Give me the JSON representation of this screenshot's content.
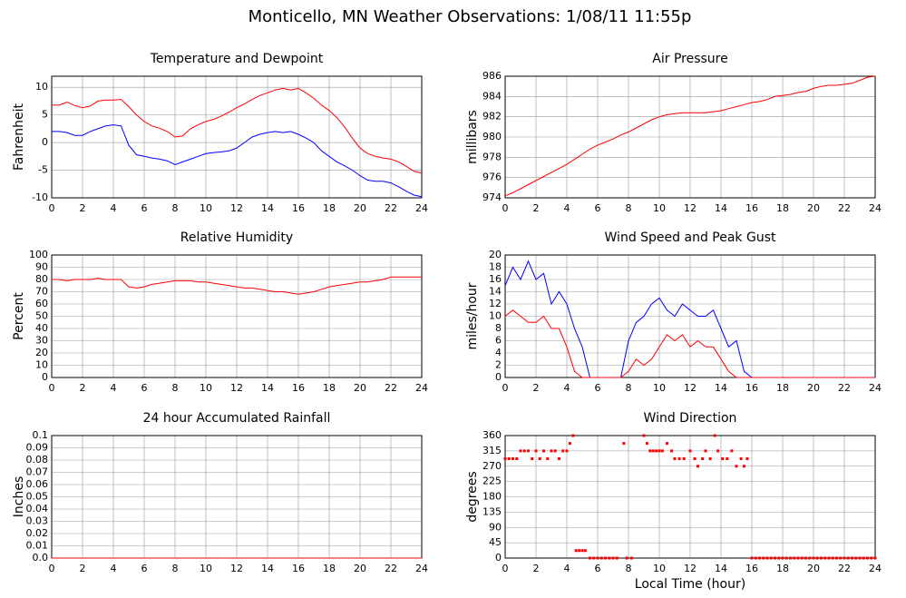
{
  "title": "Monticello, MN Weather Observations: 1/08/11 11:55p",
  "chart_data": [
    {
      "type": "line",
      "title": "Temperature and Dewpoint",
      "ylabel": "Fahrenheit",
      "x": [
        0,
        0.5,
        1,
        1.5,
        2,
        2.5,
        3,
        3.5,
        4,
        4.5,
        5,
        5.5,
        6,
        6.5,
        7,
        7.5,
        8,
        8.5,
        9,
        9.5,
        10,
        10.5,
        11,
        11.5,
        12,
        12.5,
        13,
        13.5,
        14,
        14.5,
        15,
        15.5,
        16,
        16.5,
        17,
        17.5,
        18,
        18.5,
        19,
        19.5,
        20,
        20.5,
        21,
        21.5,
        22,
        22.5,
        23,
        23.5,
        24
      ],
      "series": [
        {
          "color": "#ff0000",
          "values": [
            6.8,
            6.8,
            7.3,
            6.7,
            6.3,
            6.6,
            7.5,
            7.7,
            7.7,
            7.8,
            6.5,
            5.0,
            3.8,
            3.0,
            2.6,
            2.0,
            1.0,
            1.2,
            2.5,
            3.2,
            3.8,
            4.2,
            4.8,
            5.5,
            6.3,
            7.0,
            7.8,
            8.5,
            9.0,
            9.5,
            9.8,
            9.5,
            9.8,
            9.0,
            8.0,
            6.8,
            5.8,
            4.5,
            2.8,
            0.8,
            -1.0,
            -2.0,
            -2.5,
            -2.8,
            -3.0,
            -3.5,
            -4.3,
            -5.2,
            -5.5
          ]
        },
        {
          "color": "#0000ff",
          "values": [
            2,
            2,
            1.8,
            1.3,
            1.3,
            2.0,
            2.5,
            3.0,
            3.2,
            3.0,
            -0.5,
            -2.2,
            -2.5,
            -2.8,
            -3.0,
            -3.3,
            -4.0,
            -3.5,
            -3.0,
            -2.5,
            -2.0,
            -1.8,
            -1.7,
            -1.5,
            -1.0,
            0.0,
            1.0,
            1.5,
            1.8,
            2.0,
            1.8,
            2.0,
            1.5,
            0.8,
            0.0,
            -1.5,
            -2.5,
            -3.5,
            -4.2,
            -5.0,
            -6.0,
            -6.8,
            -7.0,
            -7.0,
            -7.3,
            -8.0,
            -8.8,
            -9.5,
            -9.8
          ]
        }
      ],
      "xlim": [
        0,
        24
      ],
      "xticks": [
        0,
        2,
        4,
        6,
        8,
        10,
        12,
        14,
        16,
        18,
        20,
        22,
        24
      ],
      "ylim": [
        -10,
        12
      ],
      "yticks": [
        -10,
        -5,
        0,
        5,
        10
      ],
      "grid": true
    },
    {
      "type": "line",
      "title": "Air Pressure",
      "ylabel": "millibars",
      "x": [
        0,
        0.5,
        1,
        1.5,
        2,
        2.5,
        3,
        3.5,
        4,
        4.5,
        5,
        5.5,
        6,
        6.5,
        7,
        7.5,
        8,
        8.5,
        9,
        9.5,
        10,
        10.5,
        11,
        11.5,
        12,
        12.5,
        13,
        13.5,
        14,
        14.5,
        15,
        15.5,
        16,
        16.5,
        17,
        17.5,
        18,
        18.5,
        19,
        19.5,
        20,
        20.5,
        21,
        21.5,
        22,
        22.5,
        23,
        23.5,
        24
      ],
      "series": [
        {
          "color": "#ff0000",
          "values": [
            974.2,
            974.5,
            974.9,
            975.3,
            975.7,
            976.1,
            976.5,
            976.9,
            977.3,
            977.8,
            978.3,
            978.8,
            979.2,
            979.5,
            979.8,
            980.2,
            980.5,
            980.9,
            981.3,
            981.7,
            982.0,
            982.2,
            982.3,
            982.4,
            982.4,
            982.4,
            982.4,
            982.5,
            982.6,
            982.8,
            983.0,
            983.2,
            983.4,
            983.5,
            983.7,
            984.0,
            984.1,
            984.2,
            984.4,
            984.5,
            984.8,
            985.0,
            985.1,
            985.1,
            985.2,
            985.3,
            985.6,
            985.9,
            986.0
          ]
        }
      ],
      "xlim": [
        0,
        24
      ],
      "xticks": [
        0,
        2,
        4,
        6,
        8,
        10,
        12,
        14,
        16,
        18,
        20,
        22,
        24
      ],
      "ylim": [
        974,
        986
      ],
      "yticks": [
        974,
        976,
        978,
        980,
        982,
        984,
        986
      ],
      "grid": true
    },
    {
      "type": "line",
      "title": "Relative Humidity",
      "ylabel": "Percent",
      "x": [
        0,
        0.5,
        1,
        1.5,
        2,
        2.5,
        3,
        3.5,
        4,
        4.5,
        5,
        5.5,
        6,
        6.5,
        7,
        7.5,
        8,
        8.5,
        9,
        9.5,
        10,
        10.5,
        11,
        11.5,
        12,
        12.5,
        13,
        13.5,
        14,
        14.5,
        15,
        15.5,
        16,
        16.5,
        17,
        17.5,
        18,
        18.5,
        19,
        19.5,
        20,
        20.5,
        21,
        21.5,
        22,
        22.5,
        23,
        23.5,
        24
      ],
      "series": [
        {
          "color": "#ff0000",
          "values": [
            80,
            80,
            79,
            80,
            80,
            80,
            81,
            80,
            80,
            80,
            74,
            73,
            74,
            76,
            77,
            78,
            79,
            79,
            79,
            78,
            78,
            77,
            76,
            75,
            74,
            73,
            73,
            72,
            71,
            70,
            70,
            69,
            68,
            69,
            70,
            72,
            74,
            75,
            76,
            77,
            78,
            78,
            79,
            80,
            82,
            82,
            82,
            82,
            82
          ]
        }
      ],
      "xlim": [
        0,
        24
      ],
      "xticks": [
        0,
        2,
        4,
        6,
        8,
        10,
        12,
        14,
        16,
        18,
        20,
        22,
        24
      ],
      "ylim": [
        0,
        100
      ],
      "yticks": [
        0,
        10,
        20,
        30,
        40,
        50,
        60,
        70,
        80,
        90,
        100
      ],
      "grid": true
    },
    {
      "type": "line",
      "title": "Wind Speed and Peak Gust",
      "ylabel": "miles/hour",
      "x": [
        0,
        0.5,
        1,
        1.5,
        2,
        2.5,
        3,
        3.5,
        4,
        4.5,
        5,
        5.5,
        6,
        6.5,
        7,
        7.5,
        8,
        8.5,
        9,
        9.5,
        10,
        10.5,
        11,
        11.5,
        12,
        12.5,
        13,
        13.5,
        14,
        14.5,
        15,
        15.5,
        16,
        16.5,
        17,
        17.5,
        18,
        18.5,
        19,
        19.5,
        20,
        20.5,
        21,
        21.5,
        22,
        22.5,
        23,
        23.5,
        24
      ],
      "series": [
        {
          "color": "#0000ff",
          "values": [
            15,
            18,
            16,
            19,
            16,
            17,
            12,
            14,
            12,
            8,
            5,
            0,
            0,
            0,
            0,
            0,
            6,
            9,
            10,
            12,
            13,
            11,
            10,
            12,
            11,
            10,
            10,
            11,
            8,
            5,
            6,
            1,
            0,
            0,
            0,
            0,
            0,
            0,
            0,
            0,
            0,
            0,
            0,
            0,
            0,
            0,
            0,
            0,
            0
          ]
        },
        {
          "color": "#ff0000",
          "values": [
            10,
            11,
            10,
            9,
            9,
            10,
            8,
            8,
            5,
            1,
            0,
            0,
            0,
            0,
            0,
            0,
            1,
            3,
            2,
            3,
            5,
            7,
            6,
            7,
            5,
            6,
            5,
            5,
            3,
            1,
            0,
            0,
            0,
            0,
            0,
            0,
            0,
            0,
            0,
            0,
            0,
            0,
            0,
            0,
            0,
            0,
            0,
            0,
            0
          ]
        }
      ],
      "xlim": [
        0,
        24
      ],
      "xticks": [
        0,
        2,
        4,
        6,
        8,
        10,
        12,
        14,
        16,
        18,
        20,
        22,
        24
      ],
      "ylim": [
        0,
        20
      ],
      "yticks": [
        0,
        2,
        4,
        6,
        8,
        10,
        12,
        14,
        16,
        18,
        20
      ],
      "grid": true
    },
    {
      "type": "line",
      "title": "24 hour Accumulated Rainfall",
      "ylabel": "Inches",
      "x": [
        0,
        24
      ],
      "series": [
        {
          "color": "#ff0000",
          "values": [
            0,
            0
          ]
        }
      ],
      "xlim": [
        0,
        24
      ],
      "xticks": [
        0,
        2,
        4,
        6,
        8,
        10,
        12,
        14,
        16,
        18,
        20,
        22,
        24
      ],
      "ylim": [
        0,
        0.1
      ],
      "yticks": [
        {
          "value": 0,
          "label": "0.0"
        },
        0.01,
        0.02,
        0.03,
        0.04,
        0.05,
        0.06,
        0.07,
        0.08,
        0.09,
        0.1
      ],
      "grid": true
    },
    {
      "type": "scatter",
      "title": "Wind Direction",
      "ylabel": "degrees",
      "xlabel": "Local Time (hour)",
      "x": [
        0,
        0.25,
        0.5,
        0.75,
        1,
        1.25,
        1.5,
        1.75,
        2,
        2.25,
        2.5,
        2.75,
        3,
        3.25,
        3.5,
        3.75,
        4,
        4.2,
        4.4,
        4.6,
        4.8,
        5,
        5.2,
        5.5,
        5.75,
        6,
        6.25,
        6.5,
        6.75,
        7,
        7.25,
        7.7,
        7.9,
        8.2,
        9,
        9.2,
        9.4,
        9.6,
        9.8,
        10,
        10.2,
        10.5,
        10.8,
        11,
        11.3,
        11.6,
        12,
        12.3,
        12.5,
        12.8,
        13,
        13.3,
        13.6,
        13.8,
        14.1,
        14.4,
        14.7,
        15,
        15.3,
        15.5,
        15.7,
        16,
        16.25,
        16.5,
        16.75,
        17,
        17.25,
        17.5,
        17.75,
        18,
        18.25,
        18.5,
        18.75,
        19,
        19.25,
        19.5,
        19.75,
        20,
        20.25,
        20.5,
        20.75,
        21,
        21.25,
        21.5,
        21.75,
        22,
        22.25,
        22.5,
        22.75,
        23,
        23.25,
        23.5,
        23.75,
        24
      ],
      "series": [
        {
          "color": "#ff0000",
          "values": [
            292,
            292,
            292,
            292,
            315,
            315,
            315,
            292,
            315,
            292,
            315,
            292,
            315,
            315,
            292,
            315,
            315,
            337,
            360,
            22,
            22,
            22,
            22,
            0,
            0,
            0,
            0,
            0,
            0,
            0,
            0,
            337,
            0,
            0,
            360,
            337,
            315,
            315,
            315,
            315,
            315,
            337,
            315,
            292,
            292,
            292,
            315,
            292,
            270,
            292,
            315,
            292,
            360,
            315,
            292,
            292,
            315,
            270,
            292,
            270,
            292,
            0,
            0,
            0,
            0,
            0,
            0,
            0,
            0,
            0,
            0,
            0,
            0,
            0,
            0,
            0,
            0,
            0,
            0,
            0,
            0,
            0,
            0,
            0,
            0,
            0,
            0,
            0,
            0,
            0,
            0,
            0,
            0,
            0
          ]
        }
      ],
      "xlim": [
        0,
        24
      ],
      "xticks": [
        0,
        2,
        4,
        6,
        8,
        10,
        12,
        14,
        16,
        18,
        20,
        22,
        24
      ],
      "ylim": [
        0,
        360
      ],
      "yticks": [
        0,
        45,
        90,
        135,
        180,
        225,
        270,
        315,
        360
      ],
      "grid": true
    }
  ]
}
